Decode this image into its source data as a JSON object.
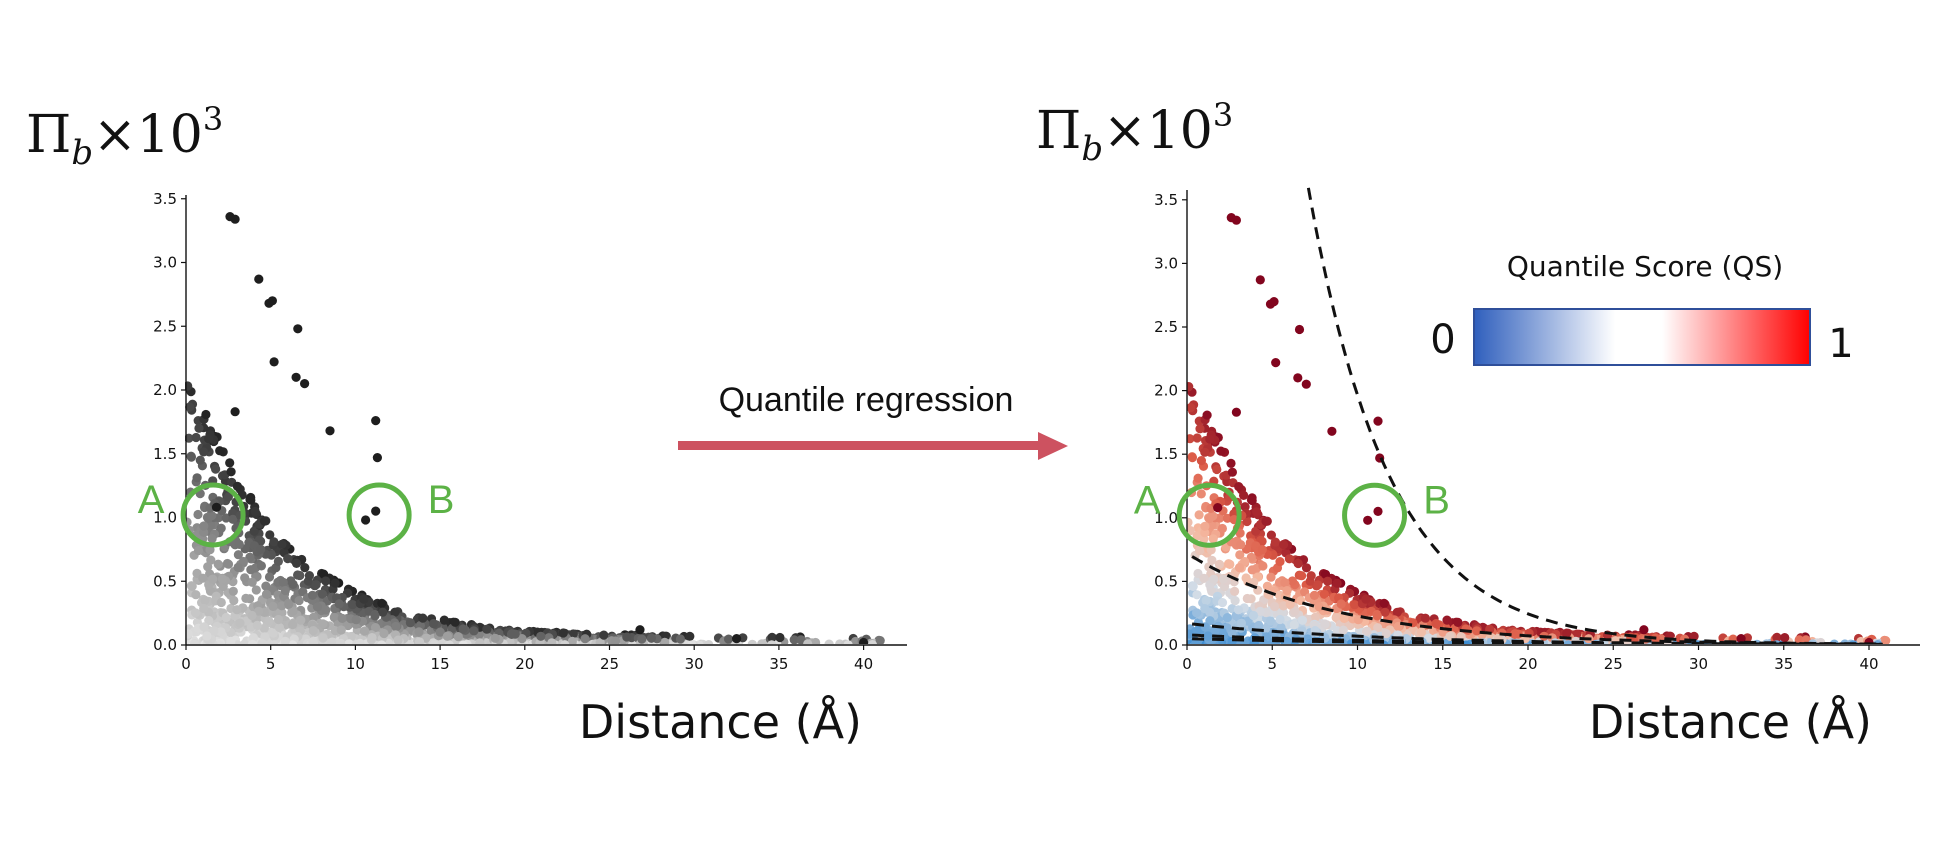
{
  "chart_data": [
    {
      "type": "scatter",
      "ylabel_base": "Π",
      "ylabel_sub": "b",
      "ylabel_times": "×10",
      "ylabel_exp": "3",
      "xlabel": "Distance (Å)",
      "xlim": [
        0,
        43
      ],
      "ylim": [
        0,
        3.55
      ],
      "xticks": [
        "0",
        "5",
        "10",
        "15",
        "20",
        "25",
        "30",
        "35",
        "40"
      ],
      "yticks": [
        "0.0",
        "0.5",
        "1.0",
        "1.5",
        "2.0",
        "2.5",
        "3.0",
        "3.5"
      ],
      "color_scheme": "grayscale",
      "highlight_points": [
        {
          "x": 2.6,
          "y": 3.36
        },
        {
          "x": 2.9,
          "y": 3.34
        },
        {
          "x": 4.3,
          "y": 2.87
        },
        {
          "x": 4.9,
          "y": 2.68
        },
        {
          "x": 5.1,
          "y": 2.7
        },
        {
          "x": 6.6,
          "y": 2.48
        },
        {
          "x": 5.2,
          "y": 2.22
        },
        {
          "x": 6.5,
          "y": 2.1
        },
        {
          "x": 7.0,
          "y": 2.05
        },
        {
          "x": 8.5,
          "y": 1.68
        },
        {
          "x": 11.2,
          "y": 1.76
        },
        {
          "x": 11.3,
          "y": 1.47
        },
        {
          "x": 2.9,
          "y": 1.83
        },
        {
          "x": 1.8,
          "y": 1.08
        },
        {
          "x": 10.6,
          "y": 0.98
        },
        {
          "x": 11.2,
          "y": 1.05
        },
        {
          "x": 26.8,
          "y": 0.12
        },
        {
          "x": 32.5,
          "y": 0.05
        },
        {
          "x": 40.0,
          "y": 0.02
        }
      ],
      "annotations": [
        {
          "label": "A",
          "x": 1.6,
          "y": 1.02
        },
        {
          "label": "B",
          "x": 11.4,
          "y": 1.02
        }
      ]
    },
    {
      "type": "scatter",
      "ylabel_base": "Π",
      "ylabel_sub": "b",
      "ylabel_times": "×10",
      "ylabel_exp": "3",
      "xlabel": "Distance (Å)",
      "xlim": [
        0,
        43
      ],
      "ylim": [
        0,
        3.55
      ],
      "xticks": [
        "0",
        "5",
        "10",
        "15",
        "20",
        "25",
        "30",
        "35",
        "40"
      ],
      "yticks": [
        "0.0",
        "0.5",
        "1.0",
        "1.5",
        "2.0",
        "2.5",
        "3.0",
        "3.5"
      ],
      "color_scheme": "blue-white-red by quantile score",
      "colorbar": {
        "title": "Quantile Score (QS)",
        "min_label": "0",
        "max_label": "1",
        "colors": [
          "#2f5fbd",
          "#ffffff",
          "#ffffff",
          "#ff0000"
        ]
      },
      "quantile_curves": [
        {
          "a": 16.0,
          "b": 0.21
        },
        {
          "a": 0.72,
          "b": 0.115
        },
        {
          "a": 0.17,
          "b": 0.09
        },
        {
          "a": 0.08,
          "b": 0.08
        },
        {
          "a": 0.05,
          "b": 0.075
        }
      ],
      "annotations": [
        {
          "label": "A",
          "x": 1.3,
          "y": 1.02
        },
        {
          "label": "B",
          "x": 11.0,
          "y": 1.02
        }
      ]
    }
  ],
  "arrow": {
    "label": "Quantile regression",
    "color": "#cd5260"
  },
  "circle_color": "#5cb246"
}
